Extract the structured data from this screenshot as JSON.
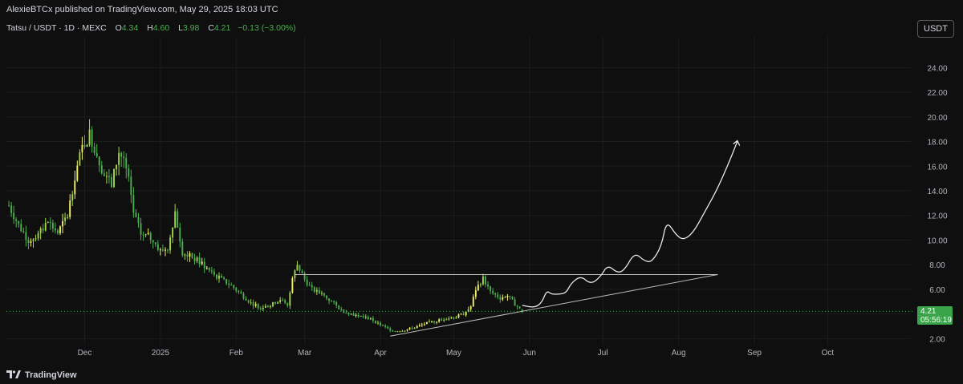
{
  "header": {
    "publisher": "AlexieBTCx published on TradingView.com, May 29, 2025 18:03 UTC"
  },
  "legend": {
    "symbol": "Tatsu / USDT · 1D · MEXC",
    "open_label": "O",
    "open": "4.34",
    "high_label": "H",
    "high": "4.60",
    "low_label": "L",
    "low": "3.98",
    "close_label": "C",
    "close": "4.21",
    "change": "−0.13 (−3.00%)"
  },
  "currency_button": "USDT",
  "price_tag": {
    "price": "4.21",
    "countdown": "05:56:19"
  },
  "footer": {
    "brand": "TradingView"
  },
  "colors": {
    "up": "#a5d64a",
    "down": "#4caf50",
    "accent_up": "#f3f36a",
    "price_tag": "#3aa44a"
  },
  "chart_data": {
    "type": "candlestick",
    "symbol": "Tatsu / USDT",
    "y_ticks": [
      "24.00",
      "22.00",
      "20.00",
      "18.00",
      "16.00",
      "14.00",
      "12.00",
      "10.00",
      "8.00",
      "6.00",
      "4.00",
      "2.00"
    ],
    "ylim": [
      1.5,
      26.5
    ],
    "x_ticks": [
      "Dec",
      "2025",
      "Feb",
      "Mar",
      "Apr",
      "May",
      "Jun",
      "Jul",
      "Aug",
      "Sep",
      "Oct"
    ],
    "x_range_days": [
      -32,
      338
    ],
    "x_tick_days": [
      0,
      31,
      62,
      90,
      121,
      151,
      182,
      212,
      243,
      274,
      304
    ],
    "last_price": 4.21,
    "closes_by_day_from_dec1": [
      {
        "day": -31,
        "close": 12.8
      },
      {
        "day": -27,
        "close": 11.2
      },
      {
        "day": -23,
        "close": 10.0
      },
      {
        "day": -19,
        "close": 10.4
      },
      {
        "day": -15,
        "close": 11.5
      },
      {
        "day": -11,
        "close": 10.6
      },
      {
        "day": -7,
        "close": 12.0
      },
      {
        "day": -4,
        "close": 15.2
      },
      {
        "day": -1,
        "close": 17.5
      },
      {
        "day": 2,
        "close": 18.6
      },
      {
        "day": 5,
        "close": 17.0
      },
      {
        "day": 8,
        "close": 15.2
      },
      {
        "day": 11,
        "close": 14.5
      },
      {
        "day": 14,
        "close": 17.2
      },
      {
        "day": 16,
        "close": 16.5
      },
      {
        "day": 18,
        "close": 14.8
      },
      {
        "day": 20,
        "close": 12.2
      },
      {
        "day": 23,
        "close": 10.5
      },
      {
        "day": 27,
        "close": 10.2
      },
      {
        "day": 31,
        "close": 9.1
      },
      {
        "day": 34,
        "close": 9.4
      },
      {
        "day": 37,
        "close": 12.3
      },
      {
        "day": 40,
        "close": 9.0
      },
      {
        "day": 44,
        "close": 8.6
      },
      {
        "day": 48,
        "close": 8.1
      },
      {
        "day": 52,
        "close": 7.3
      },
      {
        "day": 56,
        "close": 6.8
      },
      {
        "day": 60,
        "close": 6.3
      },
      {
        "day": 64,
        "close": 5.6
      },
      {
        "day": 68,
        "close": 4.9
      },
      {
        "day": 72,
        "close": 4.5
      },
      {
        "day": 76,
        "close": 4.7
      },
      {
        "day": 80,
        "close": 5.2
      },
      {
        "day": 83,
        "close": 4.6
      },
      {
        "day": 85,
        "close": 6.9
      },
      {
        "day": 87,
        "close": 8.0
      },
      {
        "day": 90,
        "close": 6.8
      },
      {
        "day": 93,
        "close": 6.0
      },
      {
        "day": 97,
        "close": 5.6
      },
      {
        "day": 101,
        "close": 5.0
      },
      {
        "day": 105,
        "close": 4.3
      },
      {
        "day": 109,
        "close": 4.0
      },
      {
        "day": 113,
        "close": 3.8
      },
      {
        "day": 117,
        "close": 3.6
      },
      {
        "day": 121,
        "close": 3.1
      },
      {
        "day": 124,
        "close": 2.8
      },
      {
        "day": 127,
        "close": 2.6
      },
      {
        "day": 131,
        "close": 2.7
      },
      {
        "day": 135,
        "close": 2.9
      },
      {
        "day": 139,
        "close": 3.2
      },
      {
        "day": 143,
        "close": 3.4
      },
      {
        "day": 147,
        "close": 3.6
      },
      {
        "day": 151,
        "close": 3.7
      },
      {
        "day": 155,
        "close": 4.0
      },
      {
        "day": 158,
        "close": 4.6
      },
      {
        "day": 160,
        "close": 6.0
      },
      {
        "day": 163,
        "close": 6.9
      },
      {
        "day": 166,
        "close": 5.8
      },
      {
        "day": 170,
        "close": 5.3
      },
      {
        "day": 173,
        "close": 5.5
      },
      {
        "day": 176,
        "close": 4.8
      },
      {
        "day": 179,
        "close": 4.21
      }
    ],
    "trendlines": [
      {
        "name": "resistance",
        "from": {
          "day": 86,
          "value": 7.2
        },
        "to": {
          "day": 259,
          "value": 7.2
        }
      },
      {
        "name": "support",
        "from": {
          "day": 125,
          "value": 2.2
        },
        "to": {
          "day": 259,
          "value": 7.2
        }
      }
    ],
    "projection_path": [
      {
        "day": 179,
        "value": 4.7
      },
      {
        "day": 184,
        "value": 4.5
      },
      {
        "day": 187,
        "value": 4.9
      },
      {
        "day": 189,
        "value": 5.9
      },
      {
        "day": 191,
        "value": 5.6
      },
      {
        "day": 194,
        "value": 5.6
      },
      {
        "day": 197,
        "value": 5.7
      },
      {
        "day": 199,
        "value": 6.5
      },
      {
        "day": 203,
        "value": 7.1
      },
      {
        "day": 207,
        "value": 6.4
      },
      {
        "day": 211,
        "value": 7.0
      },
      {
        "day": 214,
        "value": 8.0
      },
      {
        "day": 218,
        "value": 7.3
      },
      {
        "day": 221,
        "value": 7.6
      },
      {
        "day": 225,
        "value": 9.0
      },
      {
        "day": 229,
        "value": 8.3
      },
      {
        "day": 232,
        "value": 8.2
      },
      {
        "day": 236,
        "value": 9.5
      },
      {
        "day": 238,
        "value": 11.6
      },
      {
        "day": 242,
        "value": 10.4
      },
      {
        "day": 245,
        "value": 10.0
      },
      {
        "day": 249,
        "value": 10.6
      },
      {
        "day": 254,
        "value": 12.4
      },
      {
        "day": 259,
        "value": 14.2
      },
      {
        "day": 264,
        "value": 16.5
      },
      {
        "day": 267,
        "value": 18.0
      }
    ]
  }
}
